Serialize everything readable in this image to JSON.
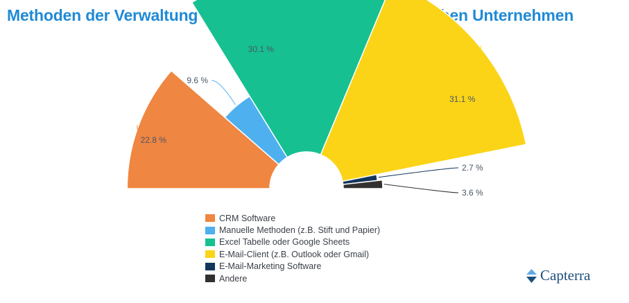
{
  "chart_data": {
    "type": "pie",
    "variant": "semicircle-donut",
    "title": "Methoden der Verwaltung von Kundenkontakten in deutschen Unternehmen",
    "unit": "%",
    "series": [
      {
        "name": "CRM Software",
        "value": 22.8,
        "label": "22.8 %",
        "color": "#ef8641"
      },
      {
        "name": "Manuelle Methoden (z.B. Stift und Papier)",
        "value": 9.6,
        "label": "9.6 %",
        "color": "#4fb0ef"
      },
      {
        "name": "Excel Tabelle oder Google Sheets",
        "value": 30.1,
        "label": "30.1 %",
        "color": "#16c091"
      },
      {
        "name": "E-Mail-Client (z.B. Outlook oder Gmail)",
        "value": 31.1,
        "label": "31.1 %",
        "color": "#fbd418"
      },
      {
        "name": "E-Mail-Marketing Software",
        "value": 2.7,
        "label": "2.7 %",
        "color": "#13365a"
      },
      {
        "name": "Andere",
        "value": 3.6,
        "label": "3.6 %",
        "color": "#33312f"
      }
    ],
    "legend_position": "bottom"
  },
  "brand": {
    "name": "Capterra",
    "icon": "capterra-logo-icon",
    "color": "#1d4f7d"
  }
}
